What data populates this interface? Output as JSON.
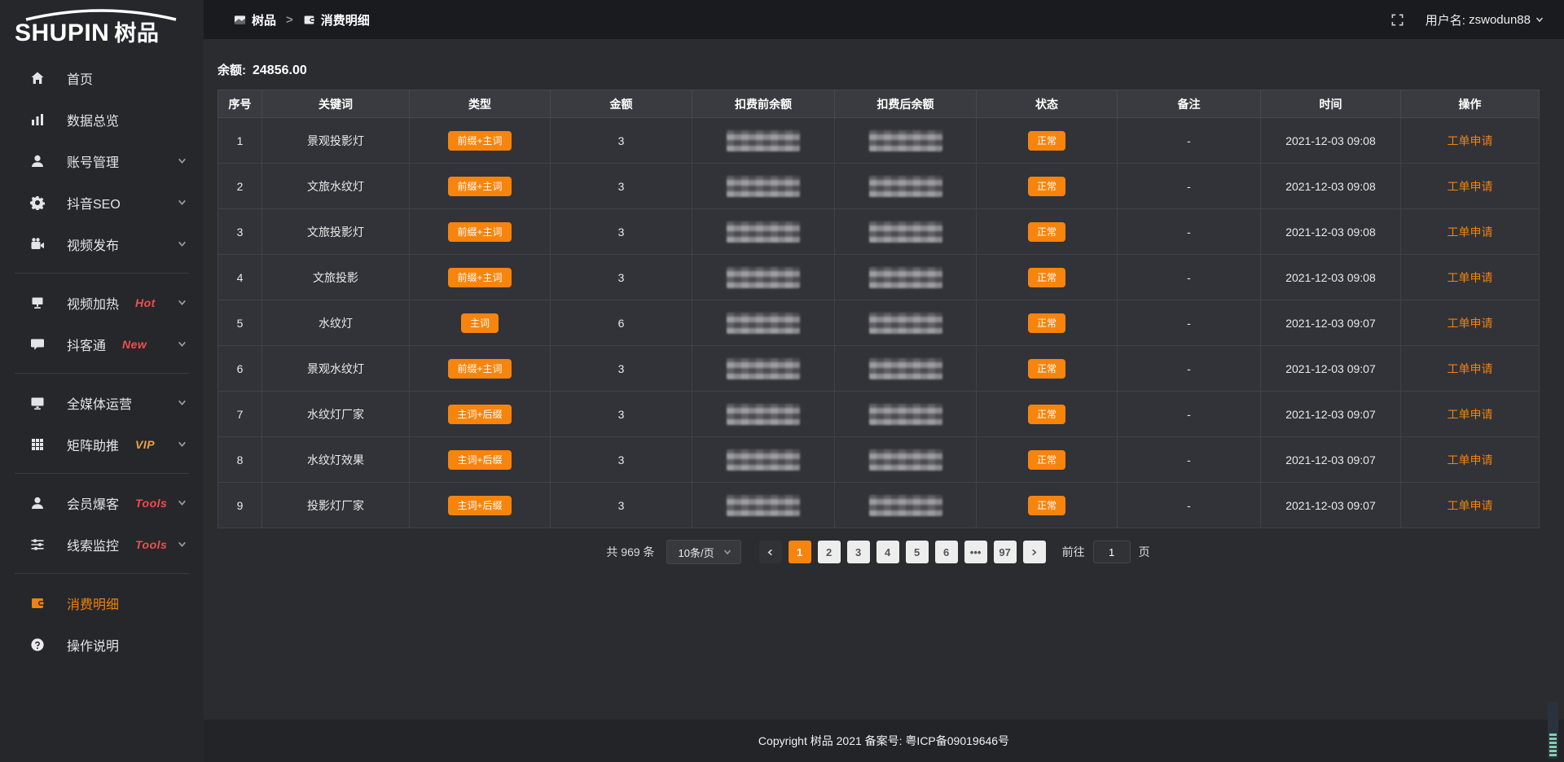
{
  "brand": {
    "logo_en": "SHUPIN",
    "logo_cn": "树品"
  },
  "topbar": {
    "breadcrumb_root": "树品",
    "separator": ">",
    "breadcrumb_current": "消费明细",
    "username_label": "用户名:",
    "username": "zswodun88"
  },
  "sidebar": {
    "items": [
      {
        "name": "home",
        "label": "首页",
        "icon": "home"
      },
      {
        "name": "data-overview",
        "label": "数据总览",
        "icon": "chart"
      },
      {
        "name": "account-management",
        "label": "账号管理",
        "icon": "user",
        "chevron": true
      },
      {
        "name": "douyin-seo",
        "label": "抖音SEO",
        "icon": "gear",
        "chevron": true
      },
      {
        "name": "video-publish",
        "label": "视频发布",
        "icon": "videocam",
        "chevron": true
      },
      {
        "divider": true
      },
      {
        "name": "video-heat",
        "label": "视频加热",
        "icon": "board",
        "tag": "Hot",
        "tag_color": "#f34d4d",
        "chevron": true
      },
      {
        "name": "douketong",
        "label": "抖客通",
        "icon": "chat",
        "tag": "New",
        "tag_color": "#f34d4d",
        "chevron": true
      },
      {
        "divider": true
      },
      {
        "name": "all-media-operation",
        "label": "全媒体运营",
        "icon": "monitor",
        "chevron": true
      },
      {
        "name": "matrix-boost",
        "label": "矩阵助推",
        "icon": "grid",
        "tag": "VIP",
        "tag_color": "#efa23d",
        "chevron": true
      },
      {
        "divider": true
      },
      {
        "name": "member-burst",
        "label": "会员爆客",
        "icon": "user",
        "tag": "Tools",
        "tag_color": "#f34d4d",
        "chevron": true
      },
      {
        "name": "lead-monitor",
        "label": "线索监控",
        "icon": "sliders",
        "tag": "Tools",
        "tag_color": "#f34d4d",
        "chevron": true
      },
      {
        "divider": true
      },
      {
        "name": "consumption-detail",
        "label": "消费明细",
        "icon": "wallet",
        "active": true
      },
      {
        "name": "operation-guide",
        "label": "操作说明",
        "icon": "question"
      }
    ]
  },
  "balance": {
    "label": "余额:",
    "value": "24856.00"
  },
  "table": {
    "headers": [
      "序号",
      "关键词",
      "类型",
      "金额",
      "扣费前余额",
      "扣费后余额",
      "状态",
      "备注",
      "时间",
      "操作"
    ],
    "masked_columns": [
      "扣费前余额",
      "扣费后余额"
    ],
    "rows": [
      {
        "index": "1",
        "keyword": "景观投影灯",
        "type": "前缀+主词",
        "amount": "3",
        "status": "正常",
        "remark": "-",
        "time": "2021-12-03 09:08",
        "action": "工单申请"
      },
      {
        "index": "2",
        "keyword": "文旅水纹灯",
        "type": "前缀+主词",
        "amount": "3",
        "status": "正常",
        "remark": "-",
        "time": "2021-12-03 09:08",
        "action": "工单申请"
      },
      {
        "index": "3",
        "keyword": "文旅投影灯",
        "type": "前缀+主词",
        "amount": "3",
        "status": "正常",
        "remark": "-",
        "time": "2021-12-03 09:08",
        "action": "工单申请"
      },
      {
        "index": "4",
        "keyword": "文旅投影",
        "type": "前缀+主词",
        "amount": "3",
        "status": "正常",
        "remark": "-",
        "time": "2021-12-03 09:08",
        "action": "工单申请"
      },
      {
        "index": "5",
        "keyword": "水纹灯",
        "type": "主词",
        "amount": "6",
        "status": "正常",
        "remark": "-",
        "time": "2021-12-03 09:07",
        "action": "工单申请"
      },
      {
        "index": "6",
        "keyword": "景观水纹灯",
        "type": "前缀+主词",
        "amount": "3",
        "status": "正常",
        "remark": "-",
        "time": "2021-12-03 09:07",
        "action": "工单申请"
      },
      {
        "index": "7",
        "keyword": "水纹灯厂家",
        "type": "主词+后缀",
        "amount": "3",
        "status": "正常",
        "remark": "-",
        "time": "2021-12-03 09:07",
        "action": "工单申请"
      },
      {
        "index": "8",
        "keyword": "水纹灯效果",
        "type": "主词+后缀",
        "amount": "3",
        "status": "正常",
        "remark": "-",
        "time": "2021-12-03 09:07",
        "action": "工单申请"
      },
      {
        "index": "9",
        "keyword": "投影灯厂家",
        "type": "主词+后缀",
        "amount": "3",
        "status": "正常",
        "remark": "-",
        "time": "2021-12-03 09:07",
        "action": "工单申请"
      }
    ]
  },
  "pagination": {
    "total_label": "共 969 条",
    "page_size": "10条/页",
    "pages": [
      "1",
      "2",
      "3",
      "4",
      "5",
      "6",
      "•••",
      "97"
    ],
    "active_page": "1",
    "goto_label": "前往",
    "goto_value": "1",
    "goto_suffix": "页"
  },
  "footer": {
    "text": "Copyright 树品 2021 备案号: 粤ICP备09019646号"
  },
  "colors": {
    "accent": "#f7840d",
    "danger": "#f34d4d",
    "vip": "#efa23d",
    "badge": "#f7840d"
  }
}
